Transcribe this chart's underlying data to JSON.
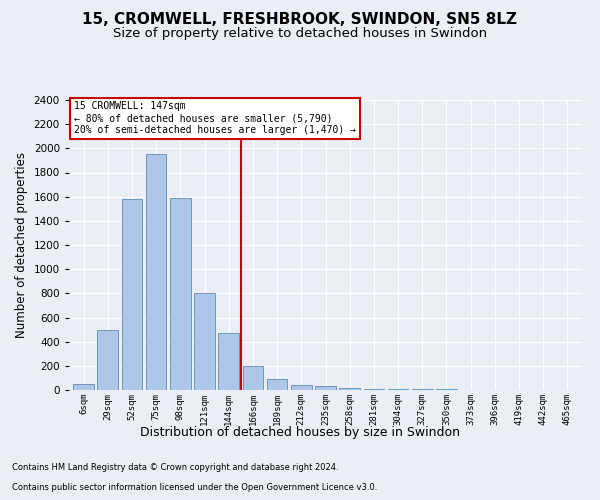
{
  "title": "15, CROMWELL, FRESHBROOK, SWINDON, SN5 8LZ",
  "subtitle": "Size of property relative to detached houses in Swindon",
  "xlabel": "Distribution of detached houses by size in Swindon",
  "ylabel": "Number of detached properties",
  "footnote1": "Contains HM Land Registry data © Crown copyright and database right 2024.",
  "footnote2": "Contains public sector information licensed under the Open Government Licence v3.0.",
  "bar_labels": [
    "6sqm",
    "29sqm",
    "52sqm",
    "75sqm",
    "98sqm",
    "121sqm",
    "144sqm",
    "166sqm",
    "189sqm",
    "212sqm",
    "235sqm",
    "258sqm",
    "281sqm",
    "304sqm",
    "327sqm",
    "350sqm",
    "373sqm",
    "396sqm",
    "419sqm",
    "442sqm",
    "465sqm"
  ],
  "bar_heights": [
    50,
    500,
    1580,
    1950,
    1590,
    800,
    470,
    200,
    90,
    40,
    30,
    20,
    5,
    5,
    5,
    5,
    0,
    0,
    0,
    0,
    0
  ],
  "bar_color": "#aec6e8",
  "bar_edgecolor": "#5f8db5",
  "vline_color": "#cc0000",
  "annotation_title": "15 CROMWELL: 147sqm",
  "annotation_line1": "← 80% of detached houses are smaller (5,790)",
  "annotation_line2": "20% of semi-detached houses are larger (1,470) →",
  "annotation_box_color": "#cc0000",
  "ylim": [
    0,
    2400
  ],
  "yticks": [
    0,
    200,
    400,
    600,
    800,
    1000,
    1200,
    1400,
    1600,
    1800,
    2000,
    2200,
    2400
  ],
  "bg_color": "#eaeff7",
  "plot_bg_color": "#eaeff7",
  "grid_color": "#ffffff",
  "title_fontsize": 11,
  "subtitle_fontsize": 9.5,
  "xlabel_fontsize": 9,
  "ylabel_fontsize": 8.5
}
